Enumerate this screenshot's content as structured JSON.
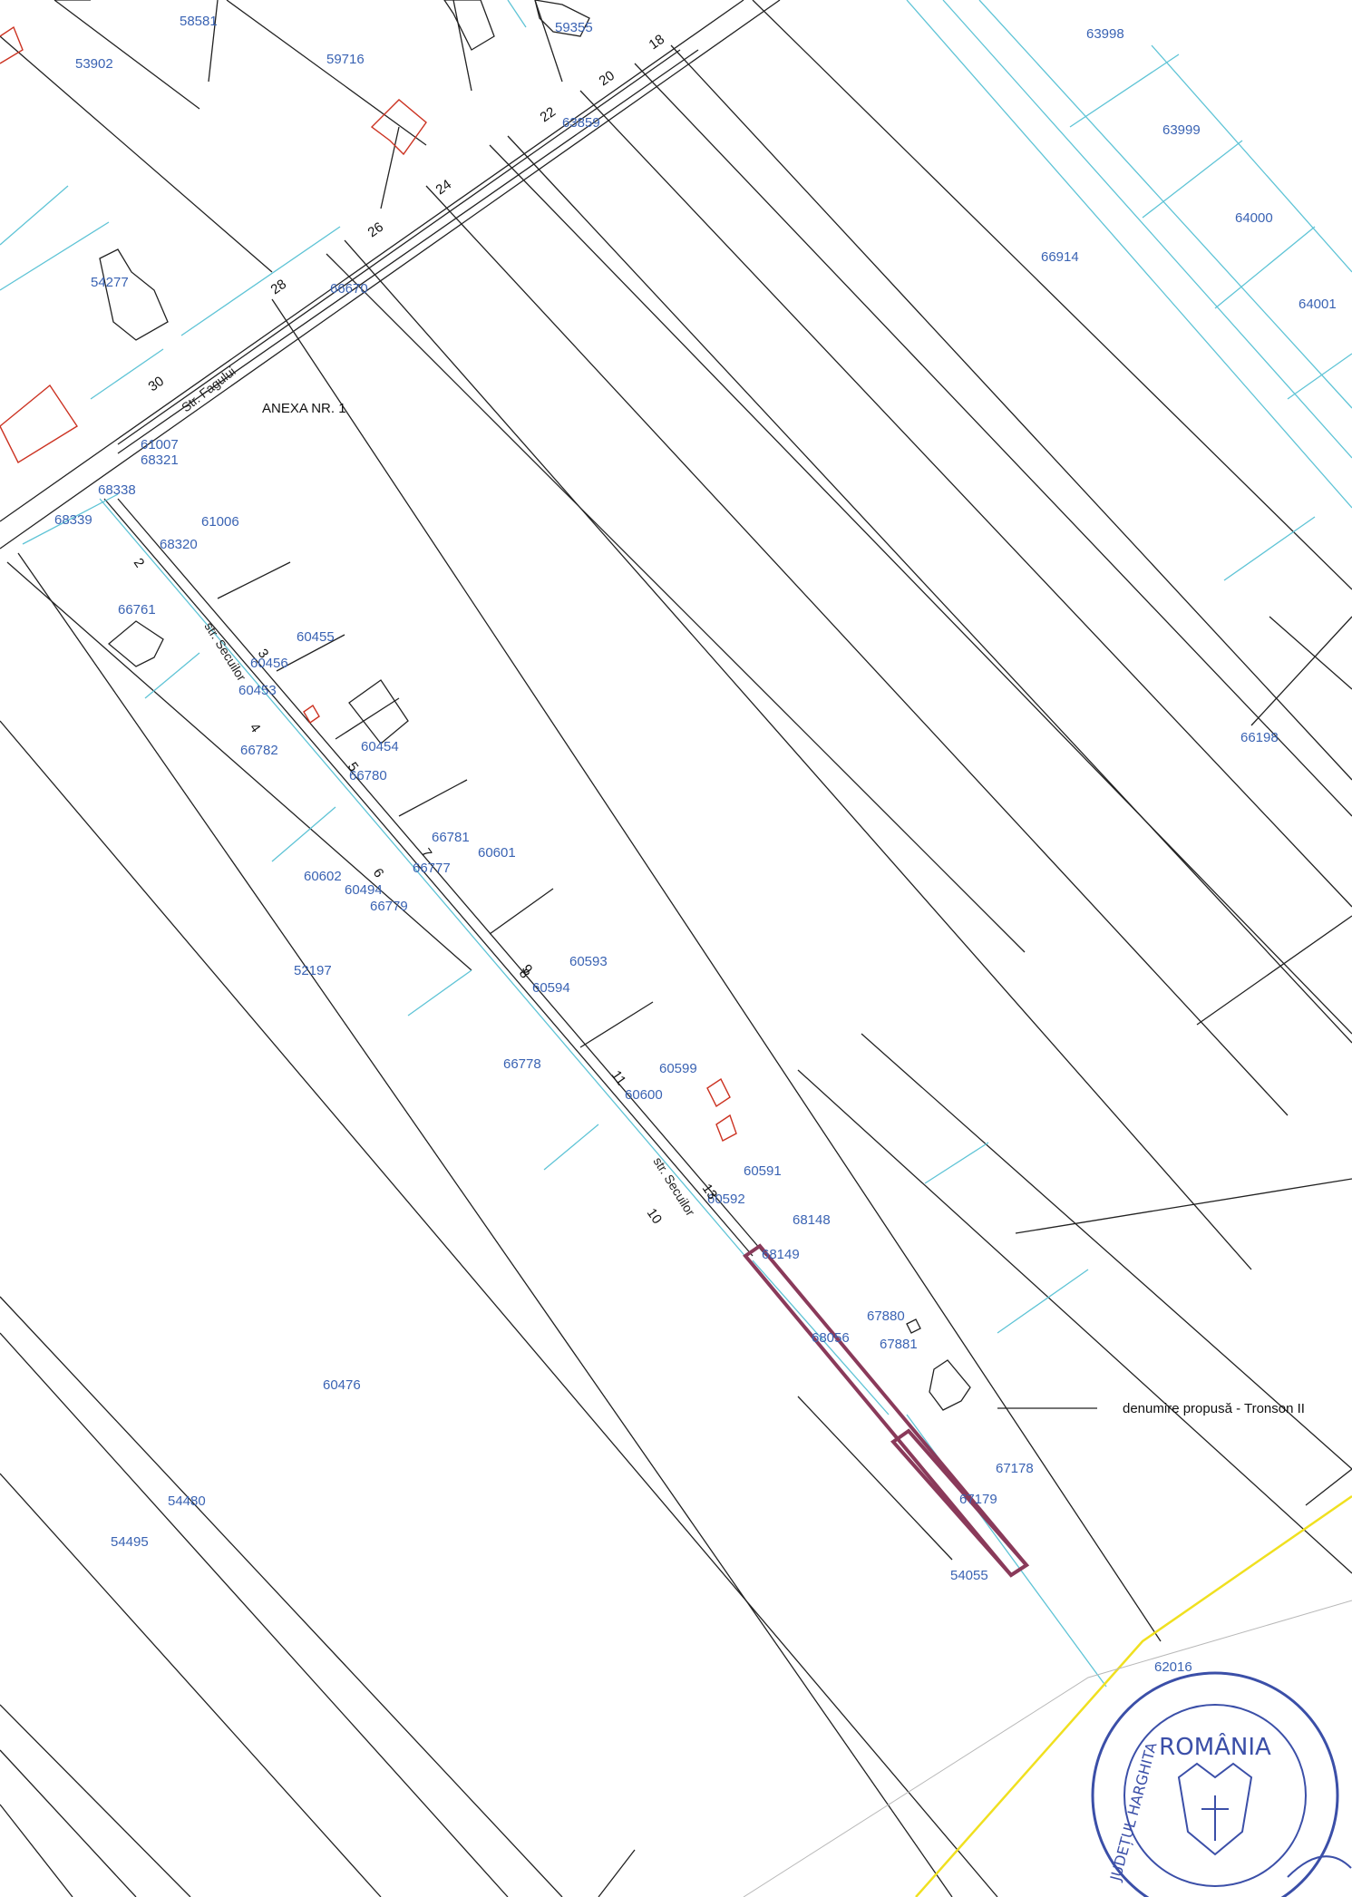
{
  "document": {
    "title": "ANEXA NR. 1",
    "callout_label": "denumire propusă - Tronson II",
    "streets": [
      "Str. Fagului",
      "str. Secuilor",
      "str. Secuilor"
    ]
  },
  "parcels": [
    "58581",
    "53902",
    "59716",
    "59355",
    "63859",
    "63998",
    "63999",
    "64000",
    "64001",
    "66914",
    "54277",
    "66670",
    "61007",
    "68321",
    "68338",
    "68339",
    "61006",
    "68320",
    "66761",
    "60455",
    "60456",
    "60453",
    "60454",
    "66780",
    "66782",
    "66781",
    "60494",
    "66777",
    "60602",
    "60601",
    "66779",
    "52197",
    "60593",
    "60594",
    "66778",
    "60599",
    "60600",
    "60591",
    "60592",
    "68148",
    "68149",
    "67880",
    "67881",
    "68056",
    "67178",
    "67179",
    "54055",
    "62016",
    "60476",
    "54480",
    "54495",
    "66198"
  ],
  "house_numbers": [
    "18",
    "20",
    "22",
    "24",
    "26",
    "28",
    "30",
    "2",
    "3",
    "4",
    "5",
    "6",
    "7",
    "8",
    "9",
    "10",
    "11",
    "13"
  ],
  "seal": {
    "country": "ROMÂNIA",
    "county": "JUDEȚUL HARGHITA"
  },
  "colors": {
    "parcel_label": "#3a63b3",
    "parcel_line_cyan": "#5fc4d6",
    "parcel_line_black": "#222222",
    "building_red": "#cc3322",
    "highlight_section": "#8a3a5a",
    "boundary_yellow": "#f0e020",
    "seal_blue": "#3b4fa8"
  }
}
